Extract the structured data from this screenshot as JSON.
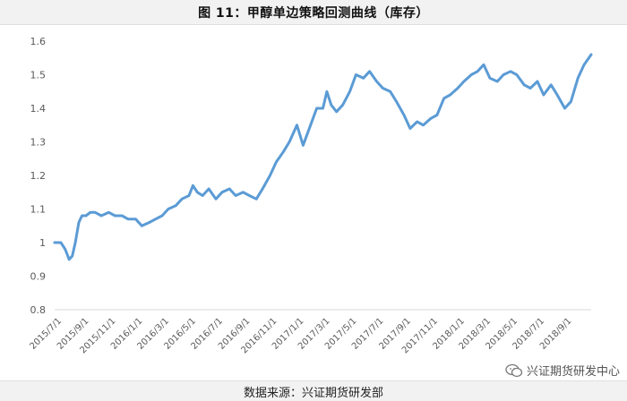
{
  "title": "图 11：甲醇单边策略回测曲线（库存）",
  "footer": "数据来源：兴证期货研发部",
  "watermark": "兴证期货研发中心",
  "colors": {
    "line": "#5b9bd5",
    "axis": "#d9d9d9",
    "tick_text": "#595959"
  },
  "chart_data": {
    "type": "line",
    "title": "",
    "xlabel": "",
    "ylabel": "",
    "ylim": [
      0.8,
      1.6
    ],
    "yticks": [
      0.8,
      0.9,
      1.0,
      1.1,
      1.2,
      1.3,
      1.4,
      1.5,
      1.6
    ],
    "ytick_labels": [
      "0.8",
      "0.9",
      "1",
      "1.1",
      "1.2",
      "1.3",
      "1.4",
      "1.5",
      "1.6"
    ],
    "xlim": [
      "2015-07-01",
      "2018-10-31"
    ],
    "xtick_labels": [
      "2015/7/1",
      "2015/9/1",
      "2015/11/1",
      "2016/1/1",
      "2016/3/1",
      "2016/5/1",
      "2016/7/1",
      "2016/9/1",
      "2016/11/1",
      "2017/1/1",
      "2017/3/1",
      "2017/5/1",
      "2017/7/1",
      "2017/9/1",
      "2017/11/1",
      "2018/1/1",
      "2018/3/1",
      "2018/5/1",
      "2018/7/1",
      "2018/9/1"
    ],
    "grid": false,
    "legend": "none",
    "series": [
      {
        "x": [
          "2015-07-01",
          "2015-07-15",
          "2015-07-25",
          "2015-08-03",
          "2015-08-10",
          "2015-08-17",
          "2015-08-25",
          "2015-09-01",
          "2015-09-10",
          "2015-09-20",
          "2015-10-01",
          "2015-10-15",
          "2015-11-01",
          "2015-11-15",
          "2015-12-01",
          "2015-12-15",
          "2016-01-01",
          "2016-01-15",
          "2016-02-01",
          "2016-02-15",
          "2016-03-01",
          "2016-03-15",
          "2016-04-01",
          "2016-04-15",
          "2016-05-01",
          "2016-05-10",
          "2016-05-20",
          "2016-06-01",
          "2016-06-15",
          "2016-07-01",
          "2016-07-15",
          "2016-08-01",
          "2016-08-15",
          "2016-09-01",
          "2016-09-15",
          "2016-10-01",
          "2016-10-15",
          "2016-11-01",
          "2016-11-15",
          "2016-12-01",
          "2016-12-15",
          "2017-01-01",
          "2017-01-15",
          "2017-02-01",
          "2017-02-15",
          "2017-03-01",
          "2017-03-10",
          "2017-03-20",
          "2017-04-01",
          "2017-04-15",
          "2017-05-01",
          "2017-05-15",
          "2017-06-01",
          "2017-06-15",
          "2017-07-01",
          "2017-07-15",
          "2017-08-01",
          "2017-08-15",
          "2017-09-01",
          "2017-09-15",
          "2017-10-01",
          "2017-10-15",
          "2017-11-01",
          "2017-11-15",
          "2017-12-01",
          "2017-12-15",
          "2018-01-01",
          "2018-01-15",
          "2018-02-01",
          "2018-02-15",
          "2018-03-01",
          "2018-03-15",
          "2018-04-01",
          "2018-04-15",
          "2018-05-01",
          "2018-05-15",
          "2018-06-01",
          "2018-06-15",
          "2018-07-01",
          "2018-07-15",
          "2018-08-01",
          "2018-08-15",
          "2018-09-01",
          "2018-09-15",
          "2018-10-01",
          "2018-10-15",
          "2018-10-31"
        ],
        "y": [
          1.0,
          1.0,
          0.98,
          0.95,
          0.96,
          1.0,
          1.06,
          1.08,
          1.08,
          1.09,
          1.09,
          1.08,
          1.09,
          1.08,
          1.08,
          1.07,
          1.07,
          1.05,
          1.06,
          1.07,
          1.08,
          1.1,
          1.11,
          1.13,
          1.14,
          1.17,
          1.15,
          1.14,
          1.16,
          1.13,
          1.15,
          1.16,
          1.14,
          1.15,
          1.14,
          1.13,
          1.16,
          1.2,
          1.24,
          1.27,
          1.3,
          1.35,
          1.29,
          1.35,
          1.4,
          1.4,
          1.45,
          1.41,
          1.39,
          1.41,
          1.45,
          1.5,
          1.49,
          1.51,
          1.48,
          1.46,
          1.45,
          1.42,
          1.38,
          1.34,
          1.36,
          1.35,
          1.37,
          1.38,
          1.43,
          1.44,
          1.46,
          1.48,
          1.5,
          1.51,
          1.53,
          1.49,
          1.48,
          1.5,
          1.51,
          1.5,
          1.47,
          1.46,
          1.48,
          1.44,
          1.47,
          1.44,
          1.4,
          1.42,
          1.49,
          1.53,
          1.56
        ]
      }
    ]
  }
}
